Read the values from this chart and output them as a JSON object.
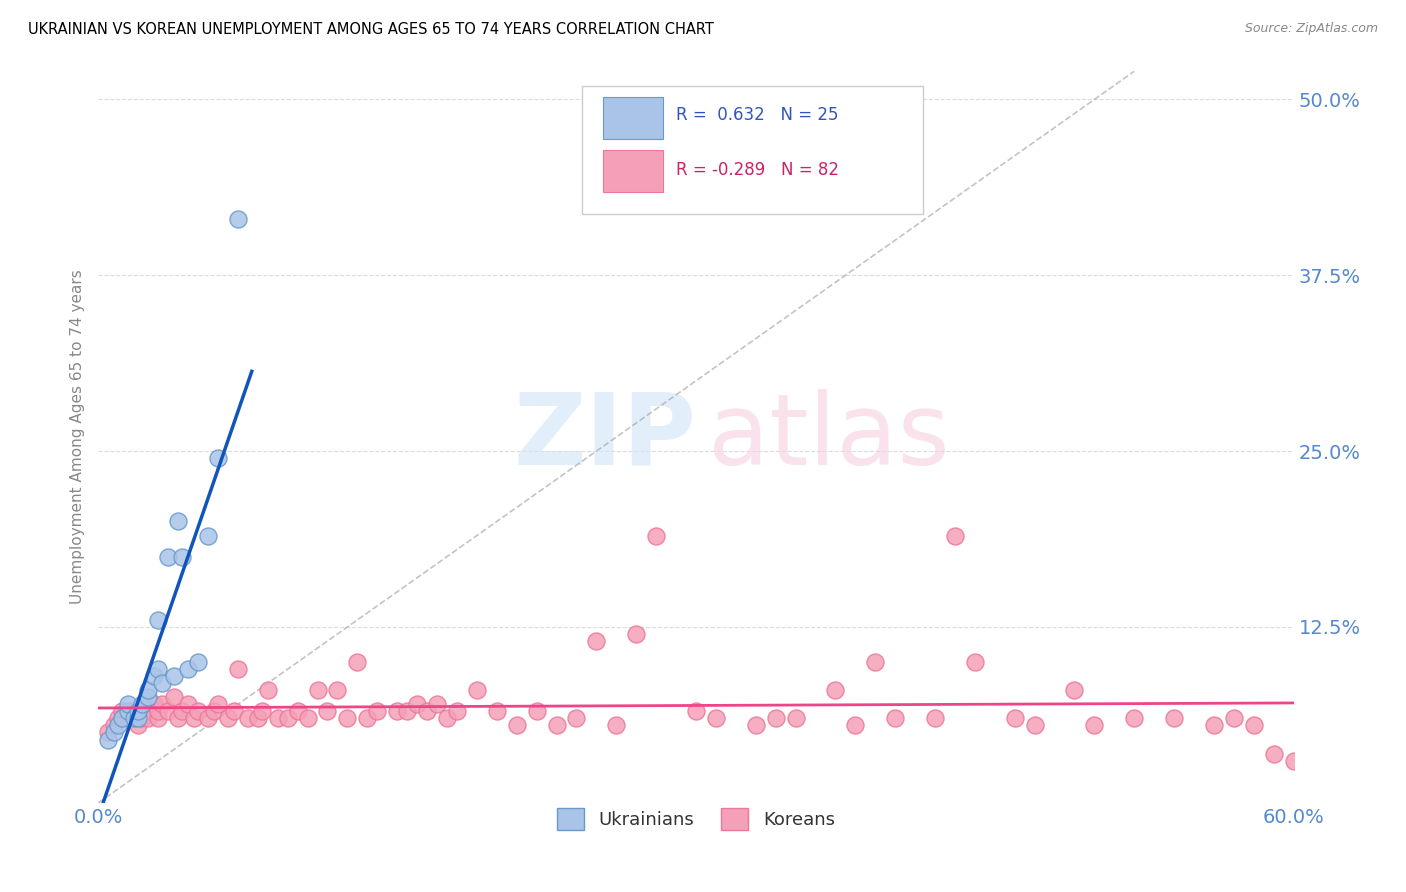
{
  "title": "UKRAINIAN VS KOREAN UNEMPLOYMENT AMONG AGES 65 TO 74 YEARS CORRELATION CHART",
  "source": "Source: ZipAtlas.com",
  "ylabel_label": "Unemployment Among Ages 65 to 74 years",
  "xlim": [
    0.0,
    0.6
  ],
  "ylim": [
    0.0,
    0.52
  ],
  "yticks": [
    0.0,
    0.125,
    0.25,
    0.375,
    0.5
  ],
  "ytick_labels": [
    "",
    "12.5%",
    "25.0%",
    "37.5%",
    "50.0%"
  ],
  "xticks": [
    0.0,
    0.6
  ],
  "xtick_labels": [
    "0.0%",
    "60.0%"
  ],
  "legend_R_ukr": "0.632",
  "legend_N_ukr": "25",
  "legend_R_kor": "-0.289",
  "legend_N_kor": "82",
  "ukr_color": "#aac4e8",
  "kor_color": "#f4a0b8",
  "ukr_edge_color": "#6699cc",
  "kor_edge_color": "#ee7799",
  "ukr_line_color": "#1155bb",
  "kor_line_color": "#ee4488",
  "grid_color": "#cccccc",
  "ukr_scatter_x": [
    0.005,
    0.008,
    0.01,
    0.012,
    0.015,
    0.015,
    0.018,
    0.02,
    0.02,
    0.022,
    0.025,
    0.025,
    0.028,
    0.03,
    0.03,
    0.032,
    0.035,
    0.038,
    0.04,
    0.042,
    0.045,
    0.05,
    0.055,
    0.06,
    0.07
  ],
  "ukr_scatter_y": [
    0.045,
    0.05,
    0.055,
    0.06,
    0.065,
    0.07,
    0.06,
    0.06,
    0.065,
    0.07,
    0.075,
    0.08,
    0.09,
    0.095,
    0.13,
    0.085,
    0.175,
    0.09,
    0.2,
    0.175,
    0.095,
    0.1,
    0.19,
    0.245,
    0.415
  ],
  "kor_scatter_x": [
    0.005,
    0.008,
    0.01,
    0.012,
    0.015,
    0.018,
    0.02,
    0.022,
    0.025,
    0.025,
    0.028,
    0.03,
    0.03,
    0.032,
    0.035,
    0.038,
    0.04,
    0.042,
    0.045,
    0.048,
    0.05,
    0.055,
    0.058,
    0.06,
    0.065,
    0.068,
    0.07,
    0.075,
    0.08,
    0.082,
    0.085,
    0.09,
    0.095,
    0.1,
    0.105,
    0.11,
    0.115,
    0.12,
    0.125,
    0.13,
    0.135,
    0.14,
    0.15,
    0.155,
    0.16,
    0.165,
    0.17,
    0.175,
    0.18,
    0.19,
    0.2,
    0.21,
    0.22,
    0.23,
    0.24,
    0.25,
    0.26,
    0.27,
    0.28,
    0.3,
    0.31,
    0.33,
    0.34,
    0.35,
    0.37,
    0.38,
    0.39,
    0.4,
    0.42,
    0.43,
    0.44,
    0.46,
    0.47,
    0.49,
    0.5,
    0.52,
    0.54,
    0.56,
    0.57,
    0.58,
    0.59,
    0.6
  ],
  "kor_scatter_y": [
    0.05,
    0.055,
    0.06,
    0.065,
    0.06,
    0.065,
    0.055,
    0.06,
    0.065,
    0.06,
    0.07,
    0.06,
    0.065,
    0.07,
    0.065,
    0.075,
    0.06,
    0.065,
    0.07,
    0.06,
    0.065,
    0.06,
    0.065,
    0.07,
    0.06,
    0.065,
    0.095,
    0.06,
    0.06,
    0.065,
    0.08,
    0.06,
    0.06,
    0.065,
    0.06,
    0.08,
    0.065,
    0.08,
    0.06,
    0.1,
    0.06,
    0.065,
    0.065,
    0.065,
    0.07,
    0.065,
    0.07,
    0.06,
    0.065,
    0.08,
    0.065,
    0.055,
    0.065,
    0.055,
    0.06,
    0.115,
    0.055,
    0.12,
    0.19,
    0.065,
    0.06,
    0.055,
    0.06,
    0.06,
    0.08,
    0.055,
    0.1,
    0.06,
    0.06,
    0.19,
    0.1,
    0.06,
    0.055,
    0.08,
    0.055,
    0.06,
    0.06,
    0.055,
    0.06,
    0.055,
    0.035,
    0.03
  ]
}
